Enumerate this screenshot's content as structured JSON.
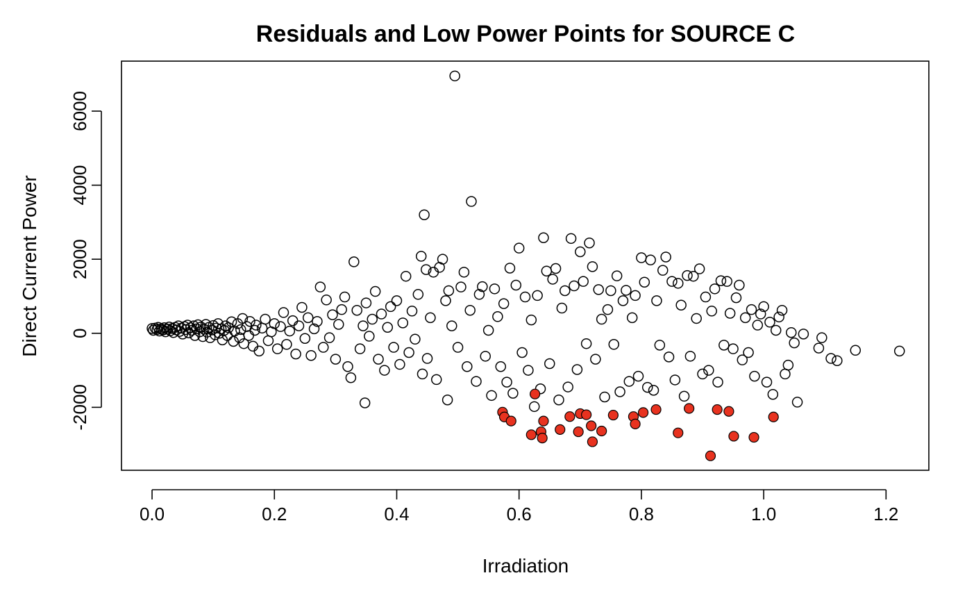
{
  "chart_data": {
    "type": "scatter",
    "title": "Residuals and Low Power Points for SOURCE C",
    "xlabel": "Irradiation",
    "ylabel": "Direct Current Power",
    "xlim": [
      -0.05,
      1.27
    ],
    "ylim": [
      -3700,
      7350
    ],
    "x_ticks": [
      0.0,
      0.2,
      0.4,
      0.6,
      0.8,
      1.0,
      1.2
    ],
    "x_tick_labels": [
      "0.0",
      "0.2",
      "0.4",
      "0.6",
      "0.8",
      "1.0",
      "1.2"
    ],
    "y_ticks": [
      -2000,
      0,
      2000,
      4000,
      6000
    ],
    "y_tick_labels": [
      "-2000",
      "0",
      "2000",
      "4000",
      "6000"
    ],
    "grid": false,
    "legend": "none",
    "colors": {
      "normal_stroke": "#000000",
      "low_fill": "#e8321f"
    },
    "series": [
      {
        "style": "open-circle",
        "points": [
          [
            0.0,
            130
          ],
          [
            0.002,
            80
          ],
          [
            0.005,
            140
          ],
          [
            0.008,
            100
          ],
          [
            0.01,
            160
          ],
          [
            0.012,
            60
          ],
          [
            0.015,
            120
          ],
          [
            0.018,
            90
          ],
          [
            0.02,
            150
          ],
          [
            0.022,
            40
          ],
          [
            0.025,
            110
          ],
          [
            0.028,
            170
          ],
          [
            0.03,
            70
          ],
          [
            0.033,
            130
          ],
          [
            0.035,
            20
          ],
          [
            0.038,
            160
          ],
          [
            0.04,
            90
          ],
          [
            0.043,
            200
          ],
          [
            0.045,
            50
          ],
          [
            0.048,
            140
          ],
          [
            0.05,
            -20
          ],
          [
            0.053,
            180
          ],
          [
            0.055,
            100
          ],
          [
            0.058,
            220
          ],
          [
            0.06,
            10
          ],
          [
            0.063,
            150
          ],
          [
            0.065,
            80
          ],
          [
            0.068,
            200
          ],
          [
            0.07,
            -60
          ],
          [
            0.073,
            120
          ],
          [
            0.075,
            230
          ],
          [
            0.078,
            40
          ],
          [
            0.08,
            170
          ],
          [
            0.083,
            -90
          ],
          [
            0.085,
            110
          ],
          [
            0.088,
            240
          ],
          [
            0.09,
            30
          ],
          [
            0.093,
            160
          ],
          [
            0.095,
            -120
          ],
          [
            0.098,
            90
          ],
          [
            0.1,
            210
          ],
          [
            0.103,
            -40
          ],
          [
            0.105,
            140
          ],
          [
            0.108,
            260
          ],
          [
            0.11,
            0
          ],
          [
            0.113,
            120
          ],
          [
            0.115,
            -180
          ],
          [
            0.118,
            80
          ],
          [
            0.12,
            200
          ],
          [
            0.123,
            -60
          ],
          [
            0.125,
            150
          ],
          [
            0.13,
            310
          ],
          [
            0.133,
            -220
          ],
          [
            0.135,
            60
          ],
          [
            0.14,
            260
          ],
          [
            0.143,
            -120
          ],
          [
            0.145,
            100
          ],
          [
            0.148,
            400
          ],
          [
            0.15,
            -280
          ],
          [
            0.155,
            180
          ],
          [
            0.158,
            -60
          ],
          [
            0.16,
            320
          ],
          [
            0.165,
            -350
          ],
          [
            0.168,
            80
          ],
          [
            0.17,
            220
          ],
          [
            0.175,
            -480
          ],
          [
            0.18,
            140
          ],
          [
            0.185,
            380
          ],
          [
            0.19,
            -200
          ],
          [
            0.195,
            40
          ],
          [
            0.2,
            260
          ],
          [
            0.205,
            -420
          ],
          [
            0.21,
            180
          ],
          [
            0.215,
            560
          ],
          [
            0.22,
            -300
          ],
          [
            0.225,
            60
          ],
          [
            0.23,
            340
          ],
          [
            0.235,
            -560
          ],
          [
            0.24,
            200
          ],
          [
            0.245,
            700
          ],
          [
            0.25,
            -140
          ],
          [
            0.255,
            420
          ],
          [
            0.26,
            -600
          ],
          [
            0.265,
            120
          ],
          [
            0.27,
            320
          ],
          [
            0.275,
            1250
          ],
          [
            0.28,
            -380
          ],
          [
            0.285,
            900
          ],
          [
            0.29,
            -120
          ],
          [
            0.295,
            500
          ],
          [
            0.3,
            -700
          ],
          [
            0.305,
            240
          ],
          [
            0.31,
            640
          ],
          [
            0.315,
            980
          ],
          [
            0.32,
            -900
          ],
          [
            0.325,
            -1200
          ],
          [
            0.33,
            1930
          ],
          [
            0.335,
            620
          ],
          [
            0.34,
            -420
          ],
          [
            0.345,
            200
          ],
          [
            0.348,
            -1880
          ],
          [
            0.35,
            820
          ],
          [
            0.355,
            -80
          ],
          [
            0.36,
            380
          ],
          [
            0.365,
            1130
          ],
          [
            0.37,
            -700
          ],
          [
            0.375,
            520
          ],
          [
            0.38,
            -1000
          ],
          [
            0.385,
            160
          ],
          [
            0.39,
            720
          ],
          [
            0.395,
            -380
          ],
          [
            0.4,
            880
          ],
          [
            0.405,
            -840
          ],
          [
            0.41,
            280
          ],
          [
            0.415,
            1540
          ],
          [
            0.42,
            -520
          ],
          [
            0.425,
            600
          ],
          [
            0.43,
            -160
          ],
          [
            0.435,
            1050
          ],
          [
            0.44,
            2080
          ],
          [
            0.442,
            -1100
          ],
          [
            0.445,
            3200
          ],
          [
            0.448,
            1720
          ],
          [
            0.45,
            -680
          ],
          [
            0.455,
            420
          ],
          [
            0.46,
            1650
          ],
          [
            0.465,
            -1250
          ],
          [
            0.47,
            1780
          ],
          [
            0.475,
            2000
          ],
          [
            0.48,
            880
          ],
          [
            0.483,
            -1800
          ],
          [
            0.485,
            1150
          ],
          [
            0.49,
            200
          ],
          [
            0.495,
            6950
          ],
          [
            0.5,
            -380
          ],
          [
            0.505,
            1250
          ],
          [
            0.51,
            1650
          ],
          [
            0.515,
            -900
          ],
          [
            0.52,
            620
          ],
          [
            0.522,
            3560
          ],
          [
            0.53,
            -1300
          ],
          [
            0.535,
            1050
          ],
          [
            0.54,
            1260
          ],
          [
            0.545,
            -620
          ],
          [
            0.55,
            80
          ],
          [
            0.555,
            -1680
          ],
          [
            0.56,
            1200
          ],
          [
            0.565,
            450
          ],
          [
            0.57,
            -900
          ],
          [
            0.575,
            800
          ],
          [
            0.58,
            -1320
          ],
          [
            0.585,
            1760
          ],
          [
            0.59,
            -1620
          ],
          [
            0.595,
            1300
          ],
          [
            0.6,
            2300
          ],
          [
            0.605,
            -520
          ],
          [
            0.61,
            980
          ],
          [
            0.615,
            -1000
          ],
          [
            0.62,
            360
          ],
          [
            0.625,
            -1980
          ],
          [
            0.63,
            1020
          ],
          [
            0.635,
            -1500
          ],
          [
            0.64,
            2580
          ],
          [
            0.645,
            1680
          ],
          [
            0.65,
            -820
          ],
          [
            0.655,
            1460
          ],
          [
            0.66,
            1750
          ],
          [
            0.665,
            -1800
          ],
          [
            0.67,
            680
          ],
          [
            0.675,
            1150
          ],
          [
            0.68,
            -1450
          ],
          [
            0.685,
            2560
          ],
          [
            0.69,
            1280
          ],
          [
            0.695,
            -980
          ],
          [
            0.7,
            2200
          ],
          [
            0.705,
            1400
          ],
          [
            0.71,
            -280
          ],
          [
            0.715,
            2440
          ],
          [
            0.72,
            1800
          ],
          [
            0.725,
            -700
          ],
          [
            0.73,
            1180
          ],
          [
            0.735,
            380
          ],
          [
            0.74,
            -1720
          ],
          [
            0.745,
            640
          ],
          [
            0.75,
            1150
          ],
          [
            0.755,
            -300
          ],
          [
            0.76,
            1550
          ],
          [
            0.765,
            -1580
          ],
          [
            0.77,
            880
          ],
          [
            0.775,
            1160
          ],
          [
            0.78,
            -1300
          ],
          [
            0.785,
            420
          ],
          [
            0.79,
            1020
          ],
          [
            0.795,
            -1160
          ],
          [
            0.8,
            2040
          ],
          [
            0.805,
            1380
          ],
          [
            0.81,
            -1460
          ],
          [
            0.815,
            1980
          ],
          [
            0.82,
            -1540
          ],
          [
            0.825,
            880
          ],
          [
            0.83,
            -320
          ],
          [
            0.835,
            1700
          ],
          [
            0.84,
            2060
          ],
          [
            0.845,
            -640
          ],
          [
            0.85,
            1400
          ],
          [
            0.855,
            -1260
          ],
          [
            0.86,
            1350
          ],
          [
            0.865,
            760
          ],
          [
            0.87,
            -1700
          ],
          [
            0.875,
            1560
          ],
          [
            0.88,
            -620
          ],
          [
            0.885,
            1540
          ],
          [
            0.89,
            400
          ],
          [
            0.895,
            1740
          ],
          [
            0.9,
            -1100
          ],
          [
            0.905,
            980
          ],
          [
            0.91,
            -1000
          ],
          [
            0.915,
            600
          ],
          [
            0.92,
            1200
          ],
          [
            0.925,
            -1320
          ],
          [
            0.93,
            1420
          ],
          [
            0.935,
            -320
          ],
          [
            0.94,
            1400
          ],
          [
            0.945,
            540
          ],
          [
            0.95,
            -420
          ],
          [
            0.955,
            960
          ],
          [
            0.96,
            1300
          ],
          [
            0.965,
            -720
          ],
          [
            0.97,
            420
          ],
          [
            0.975,
            -520
          ],
          [
            0.98,
            640
          ],
          [
            0.985,
            -1160
          ],
          [
            0.99,
            220
          ],
          [
            0.995,
            520
          ],
          [
            1.0,
            720
          ],
          [
            1.005,
            -1320
          ],
          [
            1.01,
            300
          ],
          [
            1.015,
            -1650
          ],
          [
            1.02,
            80
          ],
          [
            1.025,
            440
          ],
          [
            1.03,
            620
          ],
          [
            1.035,
            -1100
          ],
          [
            1.04,
            -860
          ],
          [
            1.045,
            20
          ],
          [
            1.05,
            -260
          ],
          [
            1.055,
            -1860
          ],
          [
            1.065,
            -20
          ],
          [
            1.09,
            -400
          ],
          [
            1.095,
            -120
          ],
          [
            1.11,
            -680
          ],
          [
            1.12,
            -740
          ],
          [
            1.15,
            -460
          ],
          [
            1.222,
            -480
          ]
        ]
      },
      {
        "style": "filled-circle",
        "points": [
          [
            0.573,
            -2130
          ],
          [
            0.576,
            -2260
          ],
          [
            0.587,
            -2370
          ],
          [
            0.62,
            -2740
          ],
          [
            0.626,
            -1640
          ],
          [
            0.636,
            -2660
          ],
          [
            0.638,
            -2830
          ],
          [
            0.64,
            -2370
          ],
          [
            0.667,
            -2600
          ],
          [
            0.683,
            -2250
          ],
          [
            0.697,
            -2660
          ],
          [
            0.7,
            -2170
          ],
          [
            0.71,
            -2200
          ],
          [
            0.718,
            -2500
          ],
          [
            0.72,
            -2930
          ],
          [
            0.735,
            -2640
          ],
          [
            0.754,
            -2210
          ],
          [
            0.787,
            -2250
          ],
          [
            0.79,
            -2450
          ],
          [
            0.803,
            -2140
          ],
          [
            0.824,
            -2060
          ],
          [
            0.86,
            -2690
          ],
          [
            0.878,
            -2030
          ],
          [
            0.913,
            -3310
          ],
          [
            0.924,
            -2060
          ],
          [
            0.943,
            -2110
          ],
          [
            0.951,
            -2780
          ],
          [
            0.984,
            -2810
          ],
          [
            1.016,
            -2260
          ]
        ]
      }
    ]
  }
}
